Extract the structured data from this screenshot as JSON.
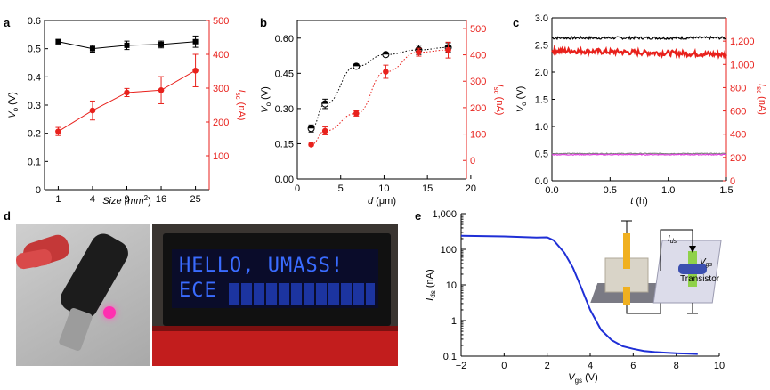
{
  "panel_letters": [
    "a",
    "b",
    "c",
    "d",
    "e"
  ],
  "colors": {
    "black": "#000000",
    "red": "#e8211c",
    "blue": "#1f2fd6",
    "magenta": "#e040e0",
    "grey": "#7f7f7f"
  },
  "lcd": {
    "line1": "HELLO, UMASS!",
    "line2": "ECE"
  },
  "inset": {
    "ids_label": "I",
    "ids_sub": "ds",
    "vgs_label": "V",
    "vgs_sub": "gs",
    "transistor_label": "Transistor"
  },
  "chart_data": [
    {
      "panel": "a",
      "type": "line",
      "x": [
        1,
        4,
        9,
        16,
        25
      ],
      "xticks": [
        "1",
        "4",
        "9",
        "16",
        "25"
      ],
      "xlabel": "Size (mm",
      "xlabel_sup": "2",
      "xlabel_end": ")",
      "ylabel": "V",
      "ylabel_sub": "o",
      "ylabel_unit": " (V)",
      "ylim": [
        0,
        0.6
      ],
      "yticks": [
        "0",
        "0.1",
        "0.2",
        "0.3",
        "0.4",
        "0.5",
        "0.6"
      ],
      "y2label": "I",
      "y2label_sub": "sc",
      "y2label_unit": " (nA)",
      "y2lim": [
        0,
        500
      ],
      "y2ticks": [
        "100",
        "200",
        "300",
        "400",
        "500"
      ],
      "series": [
        {
          "axis": "left",
          "color": "#000000",
          "marker": "square",
          "values": [
            0.525,
            0.5,
            0.512,
            0.515,
            0.525
          ],
          "err": [
            0.008,
            0.012,
            0.015,
            0.012,
            0.02
          ]
        },
        {
          "axis": "right",
          "color": "#e8211c",
          "marker": "circle",
          "values": [
            172,
            234,
            287,
            294,
            352
          ],
          "err": [
            12,
            28,
            12,
            40,
            48
          ]
        }
      ]
    },
    {
      "panel": "b",
      "type": "scatter",
      "x_series": [
        1.6,
        3.2,
        6.8,
        10.2,
        14,
        17.4
      ],
      "xticks": [
        "0",
        "5",
        "10",
        "15",
        "20"
      ],
      "xlabel": "d",
      "xlabel_unit": " (μm)",
      "ylabel": "V",
      "ylabel_sub": "o",
      "ylabel_unit": " (V)",
      "ylim": [
        0,
        0.675
      ],
      "yticks": [
        "0.00",
        "0.15",
        "0.30",
        "0.45",
        "0.60"
      ],
      "y2label": "I",
      "y2label_sub": "sc",
      "y2label_unit": " (nA)",
      "y2lim": [
        -70,
        530
      ],
      "y2ticks": [
        "0",
        "100",
        "200",
        "300",
        "400",
        "500"
      ],
      "series": [
        {
          "axis": "left",
          "color": "#000000",
          "marker": "circle-half",
          "values": [
            0.215,
            0.32,
            0.48,
            0.53,
            0.55,
            0.56
          ],
          "err": [
            0.015,
            0.02,
            0.01,
            0.005,
            0.02,
            0.02
          ]
        },
        {
          "axis": "right",
          "color": "#e8211c",
          "marker": "circle",
          "values": [
            60,
            112,
            178,
            336,
            410,
            418
          ],
          "err": [
            5,
            15,
            10,
            25,
            15,
            30
          ]
        }
      ]
    },
    {
      "panel": "c",
      "type": "line",
      "xticks": [
        "0.0",
        "0.5",
        "1.0",
        "1.5"
      ],
      "xlabel": "t",
      "xlabel_unit": " (h)",
      "ylabel": "V",
      "ylabel_sub": "o",
      "ylabel_unit": " (V)",
      "ylim": [
        0,
        3.0
      ],
      "yticks": [
        "0.0",
        "0.5",
        "1.0",
        "1.5",
        "2.0",
        "2.5",
        "3.0"
      ],
      "y2label": "I",
      "y2label_sub": "sc",
      "y2label_unit": " (nA)",
      "y2lim": [
        0,
        1400
      ],
      "y2ticks": [
        "0",
        "200",
        "400",
        "600",
        "800",
        "1,000",
        "1,200"
      ],
      "series": [
        {
          "axis": "left",
          "color": "#000000",
          "level": 2.63
        },
        {
          "axis": "right",
          "color": "#e8211c",
          "level": 1120
        },
        {
          "axis": "left",
          "color": "#7f7f7f",
          "level": 0.5
        },
        {
          "axis": "left",
          "color": "#e040e0",
          "level": 0.48
        }
      ]
    },
    {
      "panel": "e",
      "type": "line",
      "xticks": [
        "−2",
        "0",
        "2",
        "4",
        "6",
        "8",
        "10"
      ],
      "xlabel": "V",
      "xlabel_sub": "gs",
      "xlabel_unit": " (V)",
      "ylabel": "I",
      "ylabel_sub": "ds",
      "ylabel_unit": " (nA)",
      "xlim": [
        -2,
        10
      ],
      "ylim_log": [
        0.1,
        1000
      ],
      "yticks": [
        "0.1",
        "1",
        "10",
        "100",
        "1,000"
      ],
      "series": [
        {
          "color": "#1f2fd6",
          "points": [
            [
              -2,
              240
            ],
            [
              0,
              230
            ],
            [
              1.5,
              215
            ],
            [
              2.0,
              218
            ],
            [
              2.3,
              180
            ],
            [
              2.8,
              80
            ],
            [
              3.2,
              30
            ],
            [
              3.6,
              8
            ],
            [
              4.0,
              2.0
            ],
            [
              4.5,
              0.55
            ],
            [
              5.0,
              0.28
            ],
            [
              5.5,
              0.19
            ],
            [
              6.0,
              0.16
            ],
            [
              6.5,
              0.14
            ],
            [
              7.0,
              0.13
            ],
            [
              7.5,
              0.125
            ],
            [
              8.0,
              0.12
            ],
            [
              8.5,
              0.118
            ],
            [
              9.0,
              0.115
            ]
          ]
        }
      ]
    }
  ]
}
